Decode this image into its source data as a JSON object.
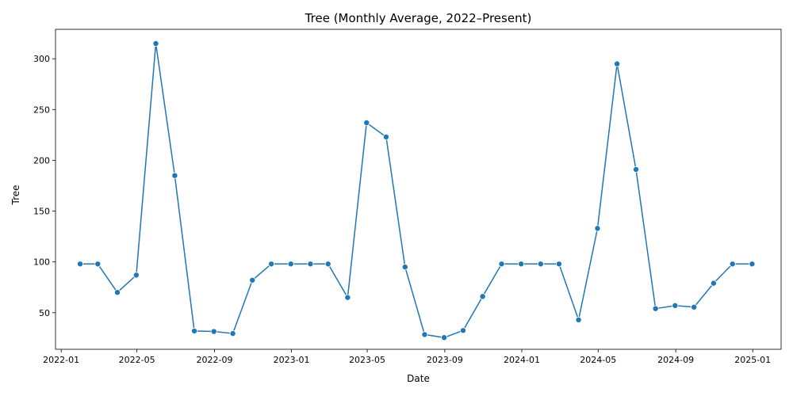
{
  "chart_data": {
    "type": "line",
    "title": "Tree (Monthly Average, 2022–Present)",
    "xlabel": "Date",
    "ylabel": "Tree",
    "line_color": "#1f77b4",
    "marker": "circle",
    "grid": false,
    "legend": "none",
    "x_range": [
      "2021-12-23",
      "2025-02-15"
    ],
    "ylim": [
      14,
      329
    ],
    "x_ticks": [
      {
        "date": "2022-01-01",
        "label": "2022-01"
      },
      {
        "date": "2022-05-01",
        "label": "2022-05"
      },
      {
        "date": "2022-09-01",
        "label": "2022-09"
      },
      {
        "date": "2023-01-01",
        "label": "2023-01"
      },
      {
        "date": "2023-05-01",
        "label": "2023-05"
      },
      {
        "date": "2023-09-01",
        "label": "2023-09"
      },
      {
        "date": "2024-01-01",
        "label": "2024-01"
      },
      {
        "date": "2024-05-01",
        "label": "2024-05"
      },
      {
        "date": "2024-09-01",
        "label": "2024-09"
      },
      {
        "date": "2025-01-01",
        "label": "2025-01"
      }
    ],
    "y_ticks": [
      50,
      100,
      150,
      200,
      250,
      300
    ],
    "series": [
      {
        "x": [
          "2022-01-31",
          "2022-02-28",
          "2022-03-31",
          "2022-04-30",
          "2022-05-31",
          "2022-06-30",
          "2022-07-31",
          "2022-08-31",
          "2022-09-30",
          "2022-10-31",
          "2022-11-30",
          "2022-12-31",
          "2023-01-31",
          "2023-02-28",
          "2023-03-31",
          "2023-04-30",
          "2023-05-31",
          "2023-06-30",
          "2023-07-31",
          "2023-08-31",
          "2023-09-30",
          "2023-10-31",
          "2023-11-30",
          "2023-12-31",
          "2024-01-31",
          "2024-02-29",
          "2024-03-31",
          "2024-04-30",
          "2024-05-31",
          "2024-06-30",
          "2024-07-31",
          "2024-08-31",
          "2024-09-30",
          "2024-10-31",
          "2024-11-30",
          "2024-12-31"
        ],
        "values": [
          98,
          98,
          70,
          87,
          315,
          185,
          32,
          31.5,
          29.5,
          82,
          98,
          98,
          98,
          98,
          65,
          237,
          223,
          95,
          28.5,
          25.5,
          32.5,
          66,
          98,
          98,
          98,
          98,
          43,
          133,
          295,
          191,
          54,
          57,
          55.5,
          79,
          98,
          98
        ]
      }
    ]
  }
}
